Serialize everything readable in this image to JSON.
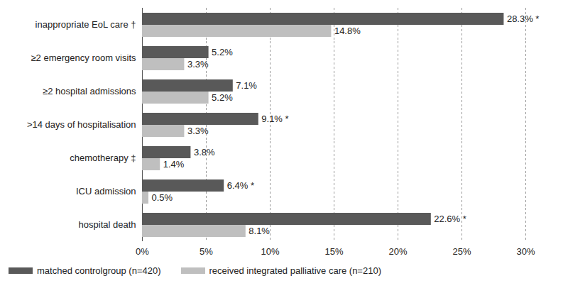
{
  "chart_data": {
    "type": "bar",
    "orientation": "horizontal",
    "categories": [
      "inappropriate EoL care †",
      "≥2 emergency room visits",
      "≥2 hospital admissions",
      ">14 days of hospitalisation",
      "chemotherapy ‡",
      "ICU admission",
      "hospital death"
    ],
    "series": [
      {
        "name": "matched controlgroup (n=420)",
        "color": "#595959",
        "values": [
          28.3,
          5.2,
          7.1,
          9.1,
          3.8,
          6.4,
          22.6
        ],
        "value_labels": [
          "28.3%",
          "5.2%",
          "7.1%",
          "9.1%",
          "3.8%",
          "6.4%",
          "22.6%"
        ],
        "annotations": [
          "*",
          null,
          null,
          "*",
          null,
          "*",
          "*"
        ]
      },
      {
        "name": "received integrated palliative care (n=210)",
        "color": "#bfbfbf",
        "values": [
          14.8,
          3.3,
          5.2,
          3.3,
          1.4,
          0.5,
          8.1
        ],
        "value_labels": [
          "14.8%",
          "3.3%",
          "5.2%",
          "3.3%",
          "1.4%",
          "0.5%",
          "8.1%"
        ]
      }
    ],
    "xlim": [
      0,
      30
    ],
    "xticks": [
      {
        "value": 0,
        "label": "0%"
      },
      {
        "value": 5,
        "label": "5%"
      },
      {
        "value": 10,
        "label": "10%"
      },
      {
        "value": 15,
        "label": "15%"
      },
      {
        "value": 20,
        "label": "20%"
      },
      {
        "value": 25,
        "label": "25%"
      },
      {
        "value": 30,
        "label": "30%"
      }
    ],
    "grid": true,
    "data_labels": true,
    "legend": "bottom"
  }
}
